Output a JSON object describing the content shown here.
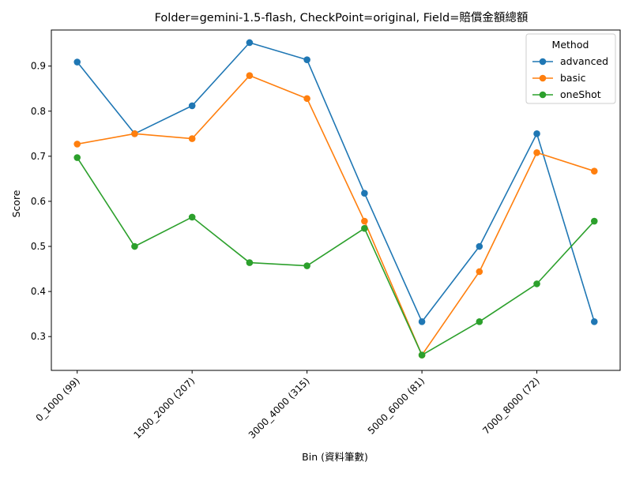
{
  "chart_data": {
    "type": "line",
    "title": "Folder=gemini-1.5-flash, CheckPoint=original, Field=賠償金額總額",
    "xlabel": "Bin (資料筆數)",
    "ylabel": "Score",
    "x_tick_labels": [
      "0_1000 (99)",
      "1500_2000 (207)",
      "3000_4000 (315)",
      "5000_6000 (81)",
      "7000_8000 (72)"
    ],
    "x_tick_positions": [
      0,
      2,
      4,
      6,
      8
    ],
    "x_points": [
      0,
      1,
      2,
      3,
      4,
      5,
      6,
      7,
      8,
      9
    ],
    "xlim": [
      -0.45,
      9.45
    ],
    "ylim": [
      0.225,
      0.98
    ],
    "yticks": [
      0.3,
      0.4,
      0.5,
      0.6,
      0.7,
      0.8,
      0.9
    ],
    "grid": false,
    "legend": {
      "title": "Method",
      "placement": "top-right"
    },
    "series": [
      {
        "name": "advanced",
        "color": "#1f77b4",
        "values": [
          0.909,
          0.75,
          0.812,
          0.952,
          0.914,
          0.618,
          0.333,
          0.5,
          0.75,
          0.333
        ]
      },
      {
        "name": "basic",
        "color": "#ff7f0e",
        "values": [
          0.727,
          0.75,
          0.739,
          0.879,
          0.828,
          0.556,
          0.259,
          0.444,
          0.708,
          0.667
        ]
      },
      {
        "name": "oneShot",
        "color": "#2ca02c",
        "values": [
          0.697,
          0.5,
          0.565,
          0.464,
          0.457,
          0.54,
          0.259,
          0.333,
          0.417,
          0.556
        ]
      }
    ]
  }
}
